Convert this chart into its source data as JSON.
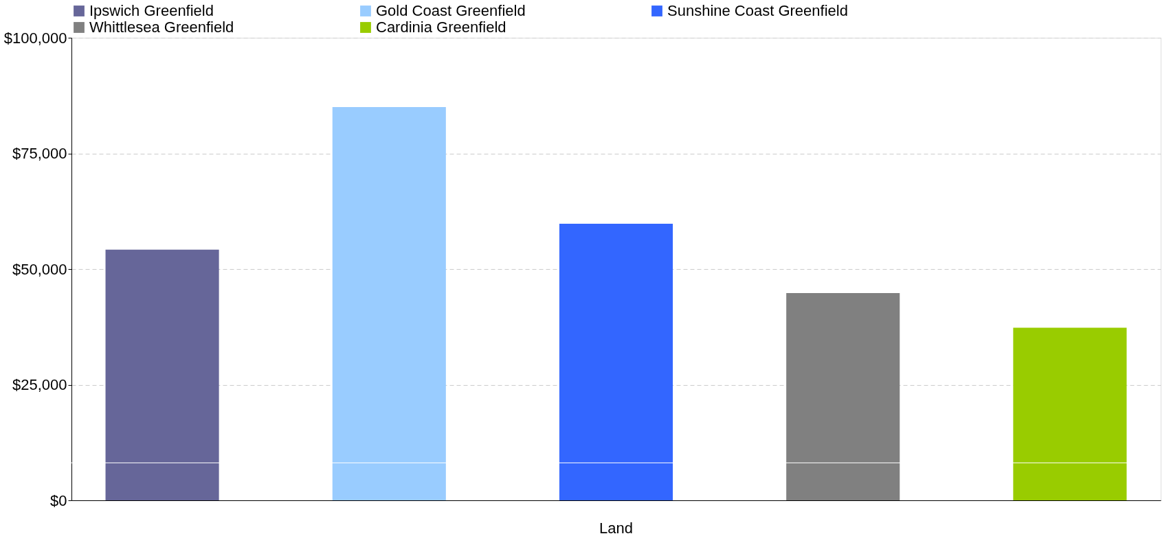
{
  "chart_data": {
    "type": "bar",
    "categories": [
      "Land"
    ],
    "series": [
      {
        "name": "Ipswich Greenfield",
        "color": "#666699",
        "values": [
          54200
        ]
      },
      {
        "name": "Gold Coast Greenfield",
        "color": "#99ccff",
        "values": [
          85000
        ]
      },
      {
        "name": "Sunshine Coast Greenfield",
        "color": "#3366ff",
        "values": [
          59800
        ]
      },
      {
        "name": "Whittlesea Greenfield",
        "color": "#808080",
        "values": [
          44800
        ]
      },
      {
        "name": "Cardinia Greenfield",
        "color": "#99cc00",
        "values": [
          37300
        ]
      }
    ],
    "ylim": [
      0,
      100000
    ],
    "yticks": [
      {
        "value": 0,
        "label": "$0"
      },
      {
        "value": 25000,
        "label": "$25,000"
      },
      {
        "value": 50000,
        "label": "$50,000"
      },
      {
        "value": 75000,
        "label": "$75,000"
      },
      {
        "value": 100000,
        "label": "$100,000"
      }
    ],
    "ref_lines": [
      {
        "axis": "y",
        "value": 8100,
        "color": "#ffffff"
      }
    ],
    "grid": "y",
    "legend": "top"
  }
}
